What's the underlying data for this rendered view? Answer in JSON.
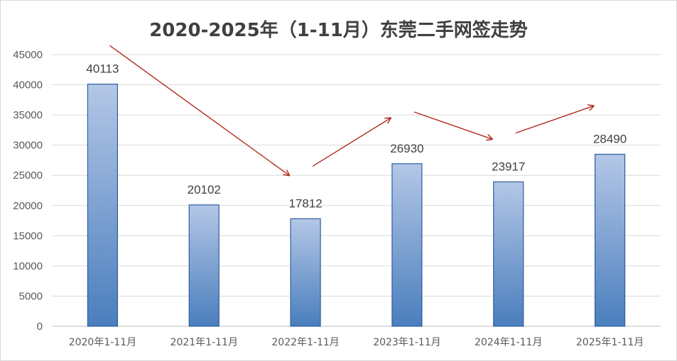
{
  "chart_data": {
    "type": "bar",
    "title": "2020-2025年（1-11月）东莞二手网签走势",
    "categories": [
      "2020年1-11月",
      "2021年1-11月",
      "2022年1-11月",
      "2023年1-11月",
      "2024年1-11月",
      "2025年1-11月"
    ],
    "values": [
      40113,
      20102,
      17812,
      26930,
      23917,
      28490
    ],
    "ylim": [
      0,
      45000
    ],
    "yticks": [
      0,
      5000,
      10000,
      15000,
      20000,
      25000,
      30000,
      35000,
      40000,
      45000
    ],
    "grid": true,
    "data_labels": true,
    "bar_gradient": [
      "#b4c7e7",
      "#4a7ebd"
    ],
    "bar_border": "#2f5d9e",
    "arrow_color": "#b22a1e",
    "trend_arrows": [
      {
        "from": [
          0,
          46500
        ],
        "to": [
          2,
          25000
        ]
      },
      {
        "from": [
          2,
          26500
        ],
        "to": [
          3,
          34500
        ]
      },
      {
        "from": [
          3,
          35500
        ],
        "to": [
          4,
          31000
        ]
      },
      {
        "from": [
          4,
          32000
        ],
        "to": [
          5,
          36500
        ]
      }
    ]
  }
}
